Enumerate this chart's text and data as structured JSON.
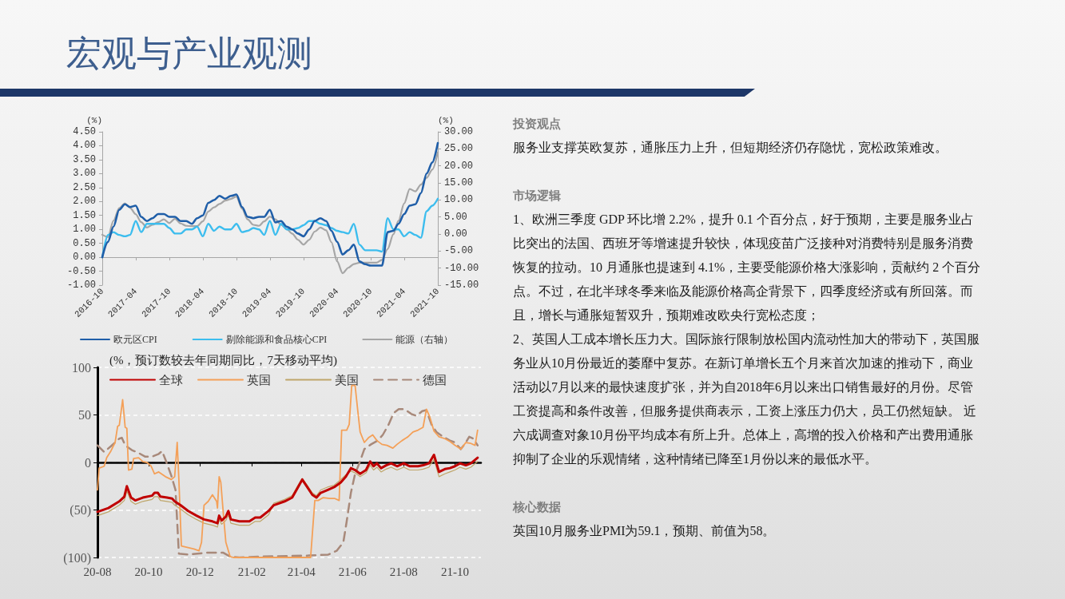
{
  "chart_data": [
    {
      "type": "line",
      "title": "宏观与产业观测",
      "ylabel": "(%)",
      "y2label": "(%)",
      "x": [
        "2016-10",
        "2016-11",
        "2016-12",
        "2017-01",
        "2017-02",
        "2017-03",
        "2017-04",
        "2017-05",
        "2017-06",
        "2017-07",
        "2017-08",
        "2017-09",
        "2017-10",
        "2017-11",
        "2017-12",
        "2018-01",
        "2018-02",
        "2018-03",
        "2018-04",
        "2018-05",
        "2018-06",
        "2018-07",
        "2018-08",
        "2018-09",
        "2018-10",
        "2018-11",
        "2018-12",
        "2019-01",
        "2019-02",
        "2019-03",
        "2019-04",
        "2019-05",
        "2019-06",
        "2019-07",
        "2019-08",
        "2019-09",
        "2019-10",
        "2019-11",
        "2019-12",
        "2020-01",
        "2020-02",
        "2020-03",
        "2020-04",
        "2020-05",
        "2020-06",
        "2020-07",
        "2020-08",
        "2020-09",
        "2020-10",
        "2020-11",
        "2020-12",
        "2021-01",
        "2021-02",
        "2021-03",
        "2021-04",
        "2021-05",
        "2021-06",
        "2021-07",
        "2021-08",
        "2021-09",
        "2021-10"
      ],
      "xlim": [
        "2016-10",
        "2021-10"
      ],
      "xticks": [
        "2016-10",
        "2017-04",
        "2017-10",
        "2018-04",
        "2018-10",
        "2019-04",
        "2019-10",
        "2020-04",
        "2020-10",
        "2021-04",
        "2021-10"
      ],
      "ylim": [
        -1,
        4.5
      ],
      "yticks": [
        {
          "value": -1,
          "label": "-1.00"
        },
        {
          "value": -0.5,
          "label": "-0.50"
        },
        {
          "value": 0,
          "label": "0.00"
        },
        {
          "value": 0.5,
          "label": "0.50"
        },
        {
          "value": 1,
          "label": "1.00"
        },
        {
          "value": 1.5,
          "label": "1.50"
        },
        {
          "value": 2,
          "label": "2.00"
        },
        {
          "value": 2.5,
          "label": "2.50"
        },
        {
          "value": 3,
          "label": "3.00"
        },
        {
          "value": 3.5,
          "label": "3.50"
        },
        {
          "value": 4,
          "label": "4.00"
        },
        {
          "value": 4.5,
          "label": "4.50"
        }
      ],
      "y2lim": [
        -15,
        30
      ],
      "y2ticks": [
        {
          "value": -15,
          "label": "-15.00"
        },
        {
          "value": -10,
          "label": "-10.00"
        },
        {
          "value": -5,
          "label": "-5.00"
        },
        {
          "value": 0,
          "label": "0.00"
        },
        {
          "value": 5,
          "label": "5.00"
        },
        {
          "value": 10,
          "label": "10.00"
        },
        {
          "value": 15,
          "label": "15.00"
        },
        {
          "value": 20,
          "label": "20.00"
        },
        {
          "value": 25,
          "label": "25.00"
        },
        {
          "value": 30,
          "label": "30.00"
        }
      ],
      "series": [
        {
          "name": "欧元区CPI",
          "color": "#1f5ea8",
          "values": [
            0.0,
            0.55,
            1.1,
            1.7,
            1.9,
            1.8,
            1.85,
            1.45,
            1.3,
            1.4,
            1.55,
            1.55,
            1.45,
            1.45,
            1.3,
            1.3,
            1.2,
            1.4,
            1.5,
            1.95,
            2.05,
            2.2,
            2.1,
            2.2,
            2.25,
            1.8,
            1.45,
            1.4,
            1.45,
            1.45,
            1.7,
            1.25,
            1.3,
            1.1,
            1.0,
            0.85,
            0.75,
            1.0,
            1.3,
            1.4,
            1.3,
            0.95,
            0.55,
            0.1,
            0.25,
            0.45,
            -0.15,
            -0.25,
            -0.3,
            -0.3,
            -0.3,
            0.9,
            0.95,
            1.2,
            1.55,
            1.85,
            1.9,
            2.3,
            3.0,
            3.4,
            4.1
          ]
        },
        {
          "name": "剔除能源和食品核心CPI",
          "color": "#3cbdee",
          "values": [
            0.0,
            0.8,
            0.9,
            0.8,
            0.75,
            0.8,
            1.3,
            0.9,
            1.2,
            1.2,
            1.2,
            1.2,
            1.05,
            0.85,
            0.85,
            1.0,
            1.0,
            1.1,
            0.75,
            1.2,
            0.95,
            1.1,
            1.0,
            1.0,
            1.2,
            0.9,
            0.95,
            1.05,
            1.0,
            0.8,
            1.3,
            0.8,
            1.2,
            1.0,
            1.0,
            1.05,
            1.15,
            1.3,
            1.3,
            1.2,
            1.15,
            1.05,
            0.95,
            0.9,
            0.85,
            1.2,
            0.45,
            0.25,
            0.25,
            0.25,
            0.2,
            1.4,
            1.0,
            1.0,
            0.75,
            0.9,
            0.8,
            0.7,
            1.65,
            1.85,
            2.1
          ]
        },
        {
          "name": "能源（右轴）",
          "color": "#a6a6a6",
          "axis": "y2",
          "values": [
            -0.2,
            -0.9,
            3.9,
            7.6,
            9.0,
            7.7,
            5.8,
            3.5,
            1.9,
            2.7,
            3.5,
            4.3,
            3.2,
            4.5,
            3.1,
            2.4,
            2.3,
            2.3,
            3.7,
            6.6,
            7.8,
            8.8,
            9.8,
            10.3,
            11.0,
            7.4,
            4.3,
            2.7,
            2.4,
            3.7,
            5.1,
            4.3,
            2.7,
            1.5,
            0.1,
            -1.7,
            -3.1,
            -1.7,
            0.7,
            1.9,
            1.1,
            -2.4,
            -8.0,
            -11.5,
            -9.9,
            -8.8,
            -8.4,
            -8.4,
            -8.4,
            -8.4,
            -7.6,
            -4.4,
            -0.1,
            3.9,
            9.0,
            13.2,
            12.5,
            14.5,
            16.5,
            18.9,
            24.0
          ]
        }
      ],
      "legend": "bottom"
    },
    {
      "type": "line",
      "ylabel": "(%，预订数较去年同期同比，7天移动平均)",
      "x": [
        "2020-08-01",
        "2020-08-14",
        "2020-08-27",
        "2020-09-02",
        "2020-09-05",
        "2020-09-10",
        "2020-09-15",
        "2020-09-24",
        "2020-10-05",
        "2020-10-08",
        "2020-10-12",
        "2020-10-15",
        "2020-10-23",
        "2020-10-29",
        "2020-11-01",
        "2020-11-08",
        "2020-11-17",
        "2020-11-27",
        "2020-12-06",
        "2020-12-16",
        "2020-12-22",
        "2020-12-24",
        "2020-12-27",
        "2021-01-01",
        "2021-01-04",
        "2021-01-07",
        "2021-01-17",
        "2021-01-29",
        "2021-02-05",
        "2021-02-11",
        "2021-02-21",
        "2021-02-27",
        "2021-03-12",
        "2021-03-21",
        "2021-03-28",
        "2021-04-02",
        "2021-04-08",
        "2021-04-14",
        "2021-04-19",
        "2021-04-24",
        "2021-05-02",
        "2021-05-10",
        "2021-05-18",
        "2021-05-24",
        "2021-05-30",
        "2021-06-04",
        "2021-06-10",
        "2021-06-17",
        "2021-06-22",
        "2021-06-26",
        "2021-06-30",
        "2021-07-05",
        "2021-07-11",
        "2021-07-17",
        "2021-07-24",
        "2021-08-01",
        "2021-08-08",
        "2021-08-18",
        "2021-08-24",
        "2021-08-31",
        "2021-09-06",
        "2021-09-12",
        "2021-09-19",
        "2021-09-25",
        "2021-10-01",
        "2021-10-07",
        "2021-10-14",
        "2021-10-20",
        "2021-10-28"
      ],
      "xlim": [
        "2020-08-01",
        "2021-11-01"
      ],
      "xticks": [
        {
          "value": "2020-08",
          "label": "20-08"
        },
        {
          "value": "2020-10",
          "label": "20-10"
        },
        {
          "value": "2020-12",
          "label": "20-12"
        },
        {
          "value": "2021-02",
          "label": "21-02"
        },
        {
          "value": "2021-04",
          "label": "21-04"
        },
        {
          "value": "2021-06",
          "label": "21-06"
        },
        {
          "value": "2021-08",
          "label": "21-08"
        },
        {
          "value": "2021-10",
          "label": "21-10"
        }
      ],
      "ylim": [
        -100,
        100
      ],
      "yticks": [
        {
          "value": -100,
          "label": "(100)"
        },
        {
          "value": -50,
          "label": "(50)"
        },
        0,
        50,
        100
      ],
      "series": [
        {
          "name": "全球",
          "color": "#c00000",
          "values": [
            -52,
            -48,
            -41,
            -36,
            -25,
            -37,
            -40,
            -37,
            -35,
            -32,
            -32,
            -36,
            -37,
            -38,
            -41,
            -45,
            -51,
            -56,
            -60,
            -62,
            -64,
            -56,
            -61,
            -57,
            -51,
            -60,
            -62,
            -62,
            -58,
            -58,
            -51,
            -45,
            -41,
            -37,
            -26,
            -18,
            -26,
            -34,
            -37,
            -32,
            -29,
            -26,
            -21,
            -15,
            -6,
            -8,
            -12,
            -8,
            1,
            -4,
            -1,
            -6,
            -3,
            -1,
            -4,
            -1,
            -4,
            -4,
            -3,
            -1,
            8,
            -10,
            -7,
            -6,
            -4,
            -1,
            -3,
            -1,
            5
          ]
        },
        {
          "name": "英国",
          "color": "#f4a058",
          "x": [
            "2020-08-01",
            "2020-08-03",
            "2020-08-09",
            "2020-08-12",
            "2020-08-17",
            "2020-08-22",
            "2020-08-25",
            "2020-08-27",
            "2020-08-31",
            "2020-09-03",
            "2020-09-05",
            "2020-09-07",
            "2020-09-11",
            "2020-09-13",
            "2020-09-19",
            "2020-09-24",
            "2020-09-29",
            "2020-10-04",
            "2020-10-08",
            "2020-10-13",
            "2020-10-21",
            "2020-10-28",
            "2020-11-01",
            "2020-11-04",
            "2020-11-06",
            "2020-11-09",
            "2020-11-14",
            "2020-11-24",
            "2020-11-30",
            "2020-12-03",
            "2020-12-06",
            "2020-12-11",
            "2020-12-16",
            "2020-12-21",
            "2020-12-22",
            "2020-12-24",
            "2020-12-26",
            "2020-12-29",
            "2021-01-01",
            "2021-01-06",
            "2021-01-10",
            "2021-04-12",
            "2021-04-17",
            "2021-04-21",
            "2021-04-27",
            "2021-05-05",
            "2021-05-11",
            "2021-05-16",
            "2021-05-19",
            "2021-05-25",
            "2021-05-28",
            "2021-05-31",
            "2021-06-04",
            "2021-06-07",
            "2021-06-10",
            "2021-06-15",
            "2021-06-20",
            "2021-06-25",
            "2021-06-30",
            "2021-07-06",
            "2021-07-12",
            "2021-07-19",
            "2021-07-24",
            "2021-07-30",
            "2021-08-06",
            "2021-08-12",
            "2021-08-18",
            "2021-08-24",
            "2021-08-28",
            "2021-09-01",
            "2021-09-06",
            "2021-09-12",
            "2021-09-19",
            "2021-09-25",
            "2021-10-01",
            "2021-10-08",
            "2021-10-14",
            "2021-10-20",
            "2021-10-25",
            "2021-10-28"
          ],
          "values": [
            -29,
            -6,
            -4,
            5,
            12,
            21,
            38,
            39,
            66,
            37,
            36,
            -8,
            -7,
            4,
            5,
            1,
            0,
            -4,
            -12,
            -10,
            -15,
            -18,
            -15,
            21,
            -18,
            -88,
            -89,
            -91,
            -93,
            -84,
            -45,
            -41,
            -34,
            -41,
            -48,
            -15,
            -21,
            -54,
            -84,
            -99,
            -100,
            -100,
            -40,
            -40,
            -37,
            -38,
            -38,
            -40,
            34,
            34,
            40,
            81,
            81,
            56,
            32,
            21,
            26,
            29,
            23,
            19,
            18,
            15,
            19,
            23,
            27,
            32,
            34,
            37,
            56,
            48,
            33,
            27,
            25,
            22,
            18,
            14,
            21,
            20,
            18,
            34
          ]
        },
        {
          "name": "美国",
          "color": "#bfa66a",
          "values": [
            -56,
            -52,
            -45,
            -40,
            -30,
            -41,
            -44,
            -41,
            -39,
            -36,
            -36,
            -40,
            -41,
            -42,
            -45,
            -49,
            -55,
            -60,
            -64,
            -66,
            -68,
            -60,
            -65,
            -61,
            -55,
            -64,
            -66,
            -66,
            -62,
            -62,
            -55,
            -43,
            -39,
            -35,
            -24,
            -17,
            -24,
            -32,
            -35,
            -29,
            -26,
            -24,
            -18,
            -13,
            -9,
            -11,
            -15,
            -11,
            -3,
            -8,
            -5,
            -10,
            -7,
            -5,
            -8,
            -5,
            -8,
            -8,
            -7,
            -5,
            3,
            -15,
            -12,
            -10,
            -8,
            -5,
            -7,
            -5,
            1
          ]
        },
        {
          "name": "德国",
          "color": "#a8897a",
          "line_style": "dashed",
          "x": [
            "2020-08-01",
            "2020-08-09",
            "2020-08-17",
            "2020-08-27",
            "2020-08-30",
            "2020-09-03",
            "2020-09-11",
            "2020-09-19",
            "2020-09-27",
            "2020-10-05",
            "2020-10-13",
            "2020-10-17",
            "2020-10-21",
            "2020-10-28",
            "2020-11-02",
            "2020-11-06",
            "2020-11-17",
            "2020-12-10",
            "2020-12-29",
            "2021-01-06",
            "2021-01-17",
            "2021-02-14",
            "2021-04-09",
            "2021-05-03",
            "2021-05-13",
            "2021-05-21",
            "2021-05-25",
            "2021-05-30",
            "2021-06-04",
            "2021-06-09",
            "2021-06-15",
            "2021-06-23",
            "2021-07-01",
            "2021-07-07",
            "2021-07-14",
            "2021-07-20",
            "2021-07-26",
            "2021-08-02",
            "2021-08-10",
            "2021-08-16",
            "2021-08-23",
            "2021-08-28",
            "2021-09-03",
            "2021-09-09",
            "2021-09-17",
            "2021-09-25",
            "2021-10-01",
            "2021-10-08",
            "2021-10-14",
            "2021-10-18",
            "2021-10-23",
            "2021-10-28"
          ],
          "values": [
            18,
            11,
            17,
            25,
            26,
            18,
            13,
            10,
            6,
            6,
            9,
            12,
            3,
            -14,
            -29,
            -96,
            -97,
            -95,
            -95,
            -99,
            -100,
            -99,
            -98,
            -97,
            -93,
            -84,
            -62,
            -32,
            -12,
            -1,
            14,
            19,
            23,
            29,
            40,
            52,
            56,
            56,
            51,
            49,
            54,
            55,
            40,
            32,
            27,
            23,
            21,
            14,
            21,
            27,
            25,
            18
          ]
        }
      ],
      "legend": "top",
      "grid": "y"
    },
    {
      "type": "other",
      "title": "投资观点",
      "annotations": [
        "服务业支撑英欧复苏，通胀压力上升，但短期经济仍存隐忧，宽松政策难改。"
      ]
    },
    {
      "type": "other",
      "title": "市场逻辑",
      "annotations": [
        "1、欧洲三季度 GDP 环比增 2.2%，提升 0.1 个百分点，好于预期，主要是服务业占比突出的法国、西班牙等增速提升较快，体现疫苗广泛接种对消费特别是服务消费恢复的拉动。10 月通胀也提速到 4.1%，主要受能源价格大涨影响，贡献约 2 个百分点。不过，在北半球冬季来临及能源价格高企背景下，四季度经济或有所回落。而且，增长与通胀短暂双升，预期难改欧央行宽松态度；",
        "2、英国人工成本增长压力大。国际旅行限制放松国内流动性加大的带动下，英国服务业从10月份最近的萎靡中复苏。在新订单增长五个月来首次加速的推动下，商业活动以7月以来的最快速度扩张，并为自2018年6月以来出口销售最好的月份。尽管工资提高和条件改善，但服务提供商表示，工资上涨压力仍大，员工仍然短缺。 近六成调查对象10月份平均成本有所上升。总体上，高增的投入价格和产出费用通胀抑制了企业的乐观情绪，这种情绪已降至1月份以来的最低水平。"
      ]
    },
    {
      "type": "other",
      "title": "核心数据",
      "annotations": [
        "英国10月服务业PMI为59.1，预期、前值为58。"
      ]
    }
  ]
}
